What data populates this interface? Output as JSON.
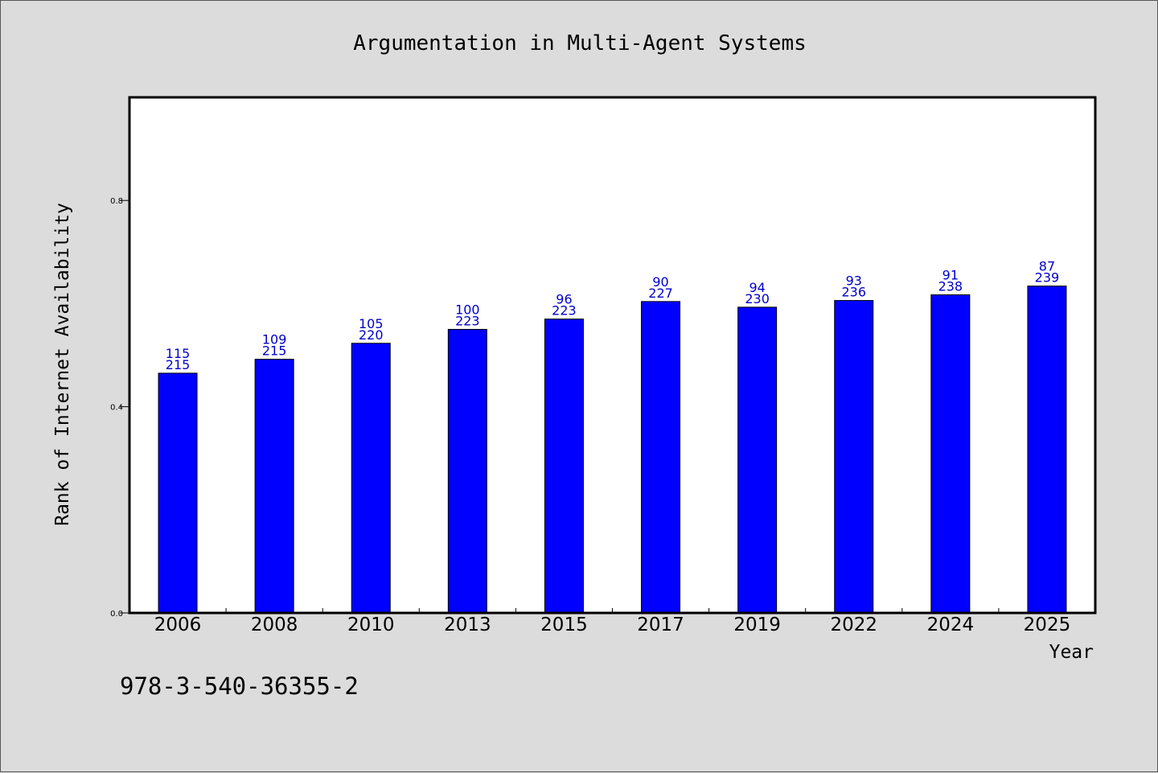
{
  "chart_data": {
    "type": "bar",
    "title": "Argumentation in Multi-Agent Systems",
    "xlabel": "Year",
    "ylabel": "Rank of Internet Availability",
    "categories": [
      "2006",
      "2008",
      "2010",
      "2013",
      "2015",
      "2017",
      "2019",
      "2022",
      "2024",
      "2025"
    ],
    "values": [
      0.465,
      0.492,
      0.523,
      0.55,
      0.57,
      0.604,
      0.593,
      0.606,
      0.617,
      0.634
    ],
    "data_labels_top": [
      "115",
      "109",
      "105",
      "100",
      "96",
      "90",
      "94",
      "93",
      "91",
      "87"
    ],
    "data_labels_bottom": [
      "215",
      "215",
      "220",
      "223",
      "223",
      "227",
      "230",
      "236",
      "238",
      "239"
    ],
    "ylim": [
      0,
      1.0
    ],
    "yticks": [
      0.0,
      0.4,
      0.8
    ],
    "ytick_labels": [
      "0.0",
      "0.4",
      "0.8"
    ],
    "grid": false,
    "colors": {
      "bar": "#0000ff",
      "label": "#0000cc",
      "plot_bg": "#ffffff",
      "page_bg": "#dcdcdc"
    }
  },
  "footnote": "978-3-540-36355-2"
}
